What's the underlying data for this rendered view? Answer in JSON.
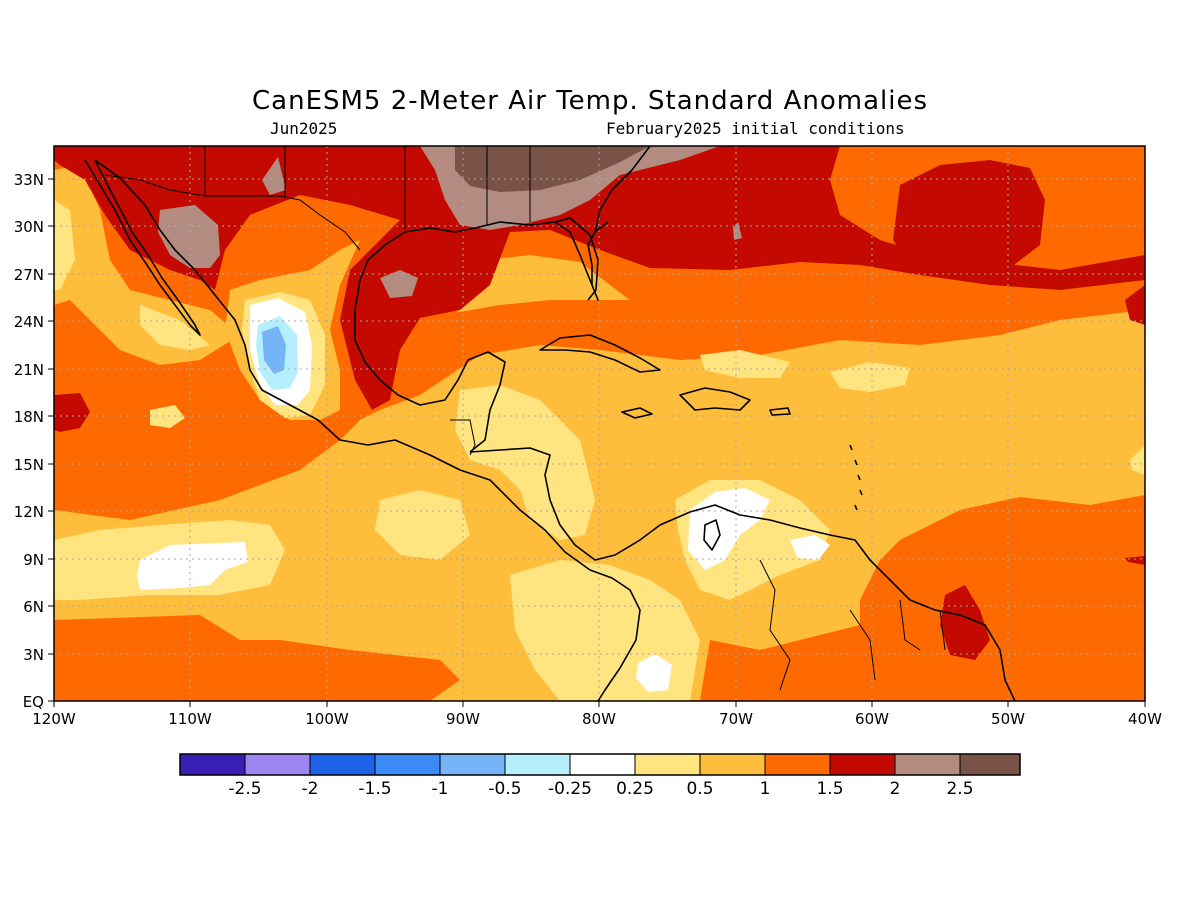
{
  "title": "CanESM5 2-Meter Air Temp. Standard Anomalies",
  "subtitle_left": "Jun2025",
  "subtitle_right": "February2025 initial conditions",
  "axes": {
    "lat_labels": [
      "EQ",
      "3N",
      "6N",
      "9N",
      "12N",
      "15N",
      "18N",
      "21N",
      "24N",
      "27N",
      "30N",
      "33N"
    ],
    "lon_labels": [
      "120W",
      "110W",
      "100W",
      "90W",
      "80W",
      "70W",
      "60W",
      "50W",
      "40W"
    ]
  },
  "colorbar": {
    "colors": [
      "#3a1fb5",
      "#9d86f2",
      "#1e62e8",
      "#3c8af5",
      "#75b4f7",
      "#b5eefd",
      "#ffffff",
      "#ffe480",
      "#ffbd3c",
      "#ff6a00",
      "#c40a00",
      "#b38b80",
      "#7a5248"
    ],
    "labels": [
      "-2.5",
      "-2",
      "-1.5",
      "-1",
      "-0.5",
      "-0.25",
      "0.25",
      "0.5",
      "1",
      "1.5",
      "2",
      "2.5"
    ]
  }
}
